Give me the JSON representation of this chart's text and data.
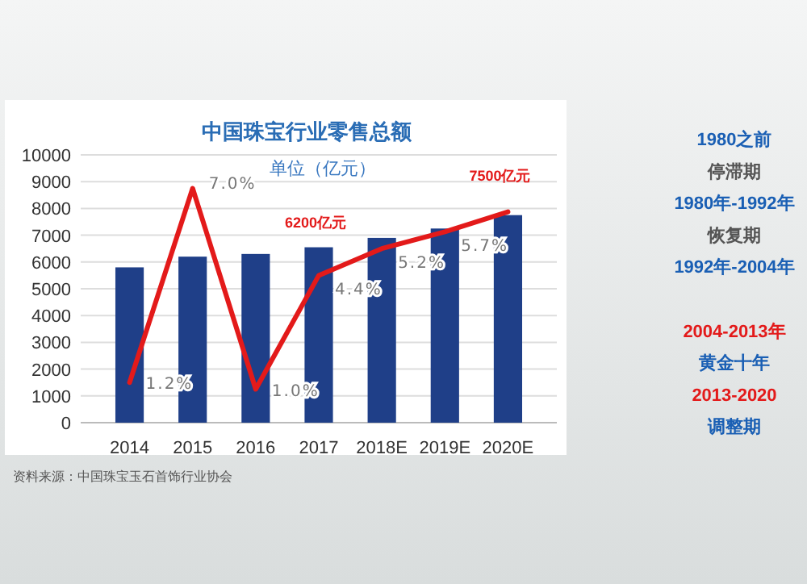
{
  "chart_data": {
    "type": "bar",
    "title": "中国珠宝行业零售总额",
    "subtitle": "单位（亿元）",
    "categories": [
      "2014",
      "2015",
      "2016",
      "2017",
      "2018E",
      "2019E",
      "2020E"
    ],
    "series": [
      {
        "color": "#1f3f88",
        "values": [
          5800,
          6200,
          6300,
          6550,
          6900,
          7250,
          7750
        ]
      },
      {
        "type": "line",
        "axis": "y2",
        "color": "#e31a1a",
        "values": [
          1.2,
          7.0,
          1.0,
          4.4,
          5.2,
          5.7,
          6.3
        ],
        "value_labels": [
          "1.2%",
          "7.0%",
          "1.0%",
          "4.4%",
          "5.2%",
          "5.7%",
          null
        ]
      }
    ],
    "ylim": [
      0,
      10000
    ],
    "yticks": [
      0,
      1000,
      2000,
      3000,
      4000,
      5000,
      6000,
      7000,
      8000,
      9000,
      10000
    ],
    "y2lim": [
      0,
      8
    ],
    "tick_labels": "xy",
    "grid": "y",
    "annotations": [
      "6200亿元",
      "7500亿元",
      "1980之前",
      "停滞期",
      "1980年-1992年",
      "恢复期",
      "1992年-2004年",
      "2004-2013年",
      "黄金十年",
      "2013-2020",
      "调整期",
      "资料来源：中国珠宝玉石首饰行业协会"
    ]
  }
}
